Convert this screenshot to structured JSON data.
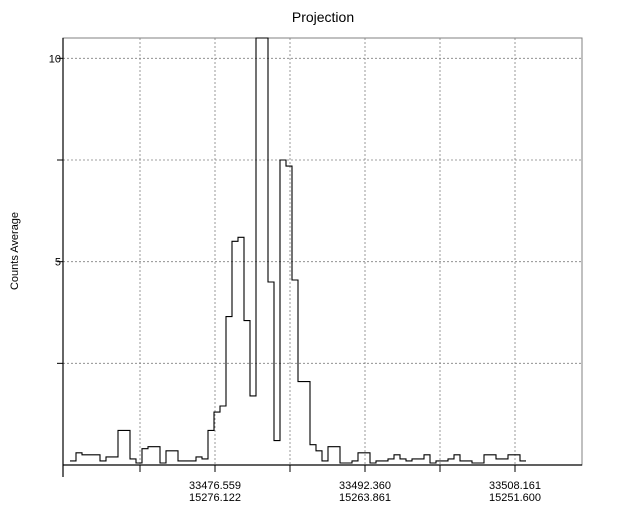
{
  "chart_data": {
    "type": "line",
    "step": true,
    "title": "Projection",
    "ylabel": "Counts Average",
    "xlabel": "",
    "ylim": [
      0,
      10.5
    ],
    "yticks": [
      {
        "value": 10,
        "label": "10"
      },
      {
        "value": 7.5,
        "label": ""
      },
      {
        "value": 5,
        "label": "5"
      },
      {
        "value": 2.5,
        "label": ""
      }
    ],
    "xlim": [
      0,
      512
    ],
    "xticks": [
      {
        "at": 70,
        "label1": "",
        "label2": ""
      },
      {
        "at": 145,
        "label1": "33476.559",
        "label2": "15276.122"
      },
      {
        "at": 220,
        "label1": "",
        "label2": ""
      },
      {
        "at": 295,
        "label1": "33492.360",
        "label2": "15263.861"
      },
      {
        "at": 370,
        "label1": "",
        "label2": ""
      },
      {
        "at": 445,
        "label1": "33508.161",
        "label2": "15251.600"
      }
    ],
    "grid": true,
    "bin_width": 6,
    "values": [
      0.1,
      0.3,
      0.25,
      0.25,
      0.25,
      0.1,
      0.2,
      0.2,
      0.85,
      0.85,
      0.15,
      0.05,
      0.4,
      0.45,
      0.45,
      0.05,
      0.35,
      0.35,
      0.1,
      0.1,
      0.1,
      0.2,
      0.15,
      0.85,
      1.3,
      1.45,
      3.65,
      5.5,
      5.6,
      3.55,
      1.7,
      10.5,
      10.5,
      4.5,
      0.6,
      7.5,
      7.35,
      4.55,
      2.05,
      2.05,
      0.5,
      0.35,
      0.1,
      0.45,
      0.45,
      0.05,
      0.05,
      0.1,
      0.3,
      0.3,
      0.05,
      0.1,
      0.1,
      0.15,
      0.25,
      0.15,
      0.1,
      0.15,
      0.15,
      0.25,
      0.05,
      0.1,
      0.1,
      0.15,
      0.25,
      0.1,
      0.1,
      0.05,
      0.05,
      0.25,
      0.25,
      0.15,
      0.15,
      0.25,
      0.25,
      0.1
    ]
  }
}
